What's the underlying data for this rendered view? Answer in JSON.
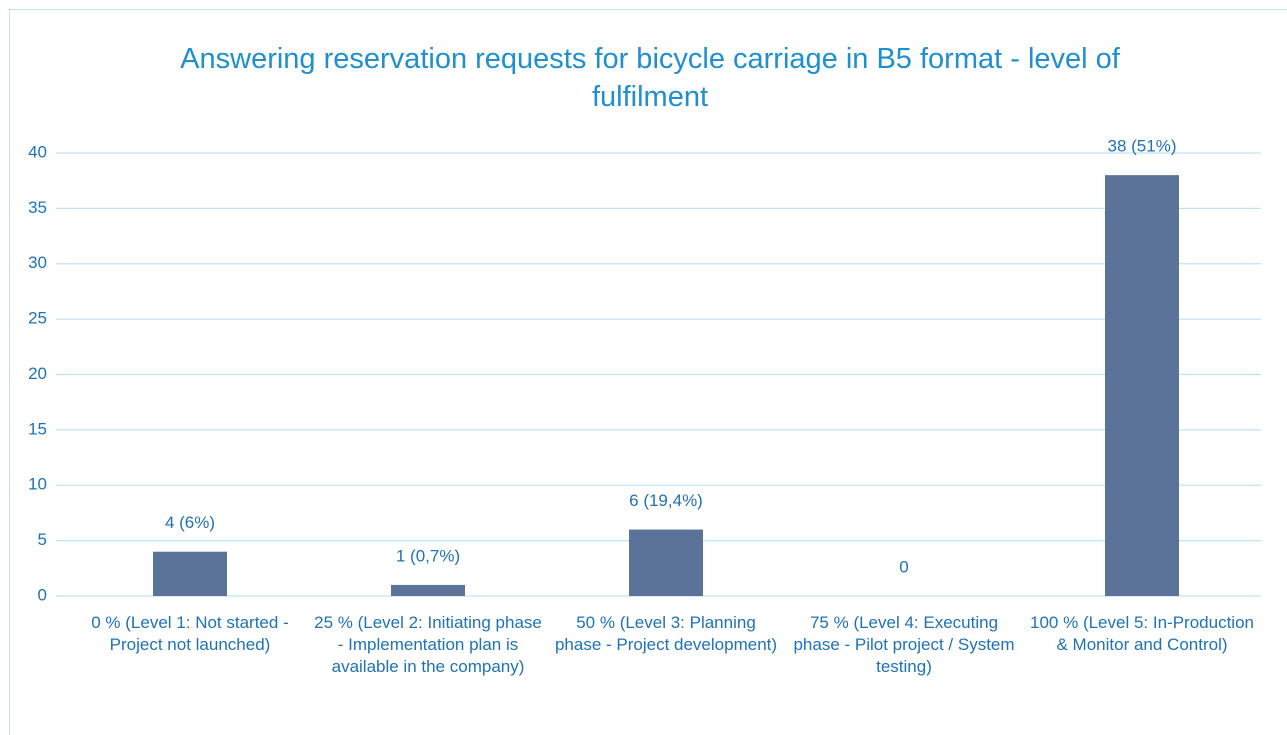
{
  "chart_data": {
    "type": "bar",
    "title": "Answering reservation requests for bicycle carriage in B5 format - level of fulfilment",
    "categories": [
      "0 % (Level 1: Not started - Project not launched)",
      "25 % (Level 2: Initiating phase - Implementation plan is available in the company)",
      "50 % (Level 3: Planning phase - Project development)",
      "75 % (Level 4: Executing phase - Pilot project / System testing)",
      "100 % (Level 5: In-Production & Monitor and Control)"
    ],
    "values": [
      4,
      1,
      6,
      0,
      38
    ],
    "value_labels": [
      "4 (6%)",
      "1 (0,7%)",
      "6 (19,4%)",
      "0",
      "38 (51%)"
    ],
    "color": "#5b7399",
    "ylim": [
      0,
      40
    ],
    "yticks": [
      0,
      5,
      10,
      15,
      20,
      25,
      30,
      35,
      40
    ],
    "grid": true
  }
}
